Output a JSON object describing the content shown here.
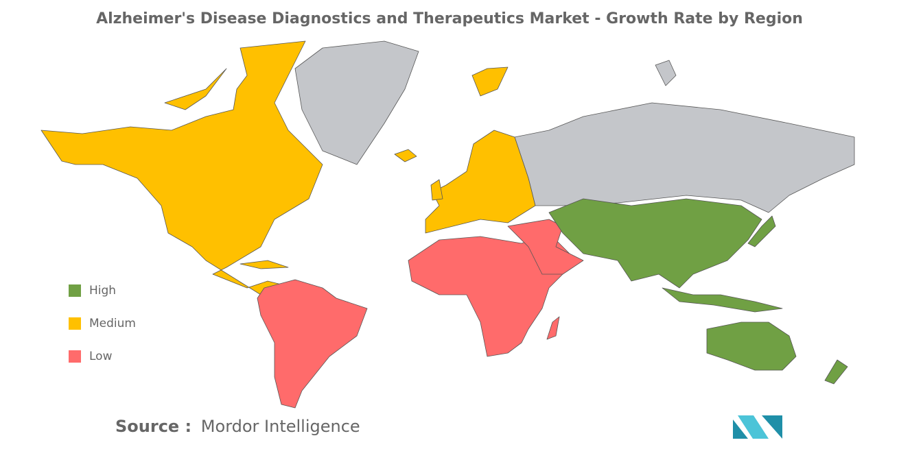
{
  "title": "Alzheimer's Disease Diagnostics and Therapeutics Market - Growth Rate by Region",
  "legend": {
    "items": [
      {
        "label": "High",
        "color": "#70a044"
      },
      {
        "label": "Medium",
        "color": "#ffc000"
      },
      {
        "label": "Low",
        "color": "#ff6b6b"
      }
    ]
  },
  "source": {
    "label": "Source :",
    "name": "Mordor Intelligence"
  }
}
